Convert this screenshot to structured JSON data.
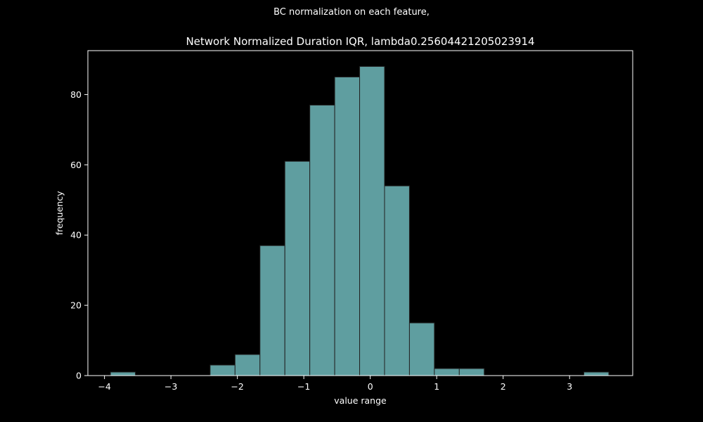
{
  "suptitle": "BC normalization on each feature,",
  "chart_data": {
    "type": "bar",
    "title": "Network Normalized Duration IQR, lambda0.25604421205023914",
    "xlabel": "value range",
    "ylabel": "frequency",
    "xlim": [
      -4.25,
      3.95
    ],
    "ylim": [
      0,
      92.5
    ],
    "xticks": [
      -4,
      -3,
      -2,
      -1,
      0,
      1,
      2,
      3
    ],
    "xtick_labels": [
      "−4",
      "−3",
      "−2",
      "−1",
      "0",
      "1",
      "2",
      "3"
    ],
    "yticks": [
      0,
      20,
      40,
      60,
      80
    ],
    "ytick_labels": [
      "0",
      "20",
      "40",
      "60",
      "80"
    ],
    "bin_edges": [
      -3.91,
      -3.535,
      -3.16,
      -2.785,
      -2.41,
      -2.035,
      -1.66,
      -1.285,
      -0.91,
      -0.535,
      -0.16,
      0.215,
      0.59,
      0.965,
      1.34,
      1.715,
      2.09,
      2.465,
      2.84,
      3.215,
      3.59
    ],
    "values": [
      1,
      0,
      0,
      0,
      3,
      6,
      37,
      61,
      77,
      85,
      88,
      54,
      15,
      2,
      2,
      0,
      0,
      0,
      0,
      1
    ],
    "bar_color": "#5f9ea0",
    "edge_color": "#222222",
    "axis_color": "#ffffff",
    "background": "#000000",
    "grid": false
  }
}
